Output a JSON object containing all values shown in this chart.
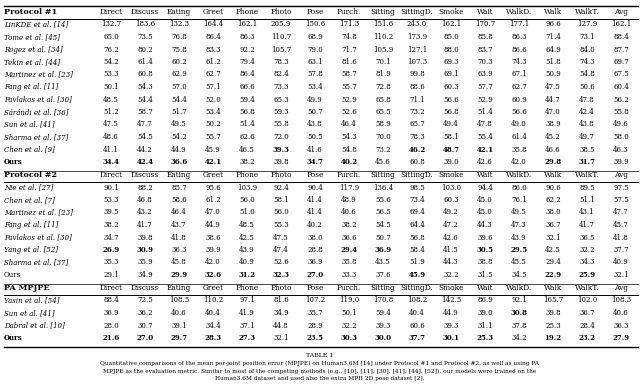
{
  "columns": [
    "",
    "Direct",
    "Discuss",
    "Eating",
    "Greet",
    "Phone",
    "Photo",
    "Pose",
    "Purch.",
    "Sitting",
    "SittingD.",
    "Smoke",
    "Wait",
    "WalkD.",
    "Walk",
    "WalkT.",
    "Avg"
  ],
  "protocol1_header": "Protocol #1",
  "protocol2_header": "Protocol #2",
  "pa_header": "PA MPJPE",
  "protocol1_rows": [
    {
      "name": "LinKDE et al. [14]",
      "vals": [
        132.7,
        183.6,
        132.3,
        164.4,
        162.1,
        205.9,
        150.6,
        171.3,
        151.6,
        243.0,
        162.1,
        170.7,
        177.1,
        96.6,
        127.9,
        162.1
      ],
      "bold_name": false,
      "bold_vals": []
    },
    {
      "name": "Tome et al. [45]",
      "vals": [
        65.0,
        73.5,
        76.8,
        86.4,
        86.3,
        110.7,
        68.9,
        74.8,
        110.2,
        173.9,
        85.0,
        85.8,
        86.3,
        71.4,
        73.1,
        88.4
      ],
      "bold_name": false,
      "bold_vals": []
    },
    {
      "name": "Rogez et al. [34]",
      "vals": [
        76.2,
        80.2,
        75.8,
        83.3,
        92.2,
        105.7,
        79.0,
        71.7,
        105.9,
        127.1,
        88.0,
        83.7,
        86.6,
        64.9,
        84.0,
        87.7
      ],
      "bold_name": false,
      "bold_vals": []
    },
    {
      "name": "Tekin et al. [44]",
      "vals": [
        54.2,
        61.4,
        60.2,
        61.2,
        79.4,
        78.3,
        63.1,
        81.6,
        70.1,
        107.3,
        69.3,
        70.3,
        74.3,
        51.8,
        74.3,
        69.7
      ],
      "bold_name": false,
      "bold_vals": []
    },
    {
      "name": "Martinez et al. [23]",
      "vals": [
        53.3,
        60.8,
        62.9,
        62.7,
        86.4,
        82.4,
        57.8,
        58.7,
        81.9,
        99.8,
        69.1,
        63.9,
        67.1,
        50.9,
        54.8,
        67.5
      ],
      "bold_name": false,
      "bold_vals": []
    },
    {
      "name": "Fang et al. [11]",
      "vals": [
        50.1,
        54.3,
        57.0,
        57.1,
        66.6,
        73.3,
        53.4,
        55.7,
        72.8,
        88.6,
        60.3,
        57.7,
        62.7,
        47.5,
        50.6,
        60.4
      ],
      "bold_name": false,
      "bold_vals": []
    },
    {
      "name": "Pavlakos et al. [30]",
      "vals": [
        48.5,
        54.4,
        54.4,
        52.0,
        59.4,
        65.3,
        49.9,
        52.9,
        65.8,
        71.1,
        56.6,
        52.9,
        60.9,
        44.7,
        47.8,
        56.2
      ],
      "bold_name": false,
      "bold_vals": []
    },
    {
      "name": "Sárándi et al. [36]",
      "vals": [
        51.2,
        58.7,
        51.7,
        53.4,
        56.8,
        59.3,
        50.7,
        52.6,
        65.5,
        73.2,
        56.8,
        51.4,
        56.6,
        47.0,
        42.4,
        55.8
      ],
      "bold_name": false,
      "bold_vals": []
    },
    {
      "name": "Sun et al. [41]",
      "vals": [
        47.5,
        47.7,
        49.5,
        50.2,
        51.4,
        55.8,
        43.8,
        46.4,
        58.9,
        65.7,
        49.4,
        47.8,
        49.0,
        38.9,
        43.8,
        49.6
      ],
      "bold_name": false,
      "bold_vals": []
    },
    {
      "name": "Sharma et al. [37]",
      "vals": [
        48.6,
        54.5,
        54.2,
        55.7,
        62.6,
        72.0,
        50.5,
        54.3,
        70.0,
        78.3,
        58.1,
        55.4,
        61.4,
        45.2,
        49.7,
        58.0
      ],
      "bold_name": false,
      "bold_vals": []
    },
    {
      "name": "Chen et al. [9]",
      "vals": [
        41.1,
        44.2,
        44.9,
        45.9,
        46.5,
        39.3,
        41.6,
        54.8,
        73.2,
        46.2,
        48.7,
        42.1,
        35.8,
        46.6,
        38.5,
        46.3
      ],
      "bold_name": false,
      "bold_vals": [
        6,
        10,
        11,
        12
      ]
    },
    {
      "name": "Ours",
      "vals": [
        34.4,
        42.4,
        36.6,
        42.1,
        38.2,
        39.8,
        34.7,
        40.2,
        45.6,
        60.8,
        39.0,
        42.6,
        42.0,
        29.8,
        31.7,
        39.9
      ],
      "bold_name": true,
      "bold_vals": [
        1,
        2,
        3,
        4,
        7,
        8,
        14,
        15
      ]
    }
  ],
  "protocol2_rows": [
    {
      "name": "Nie et al. [27]",
      "vals": [
        90.1,
        88.2,
        85.7,
        95.6,
        103.9,
        92.4,
        90.4,
        117.9,
        136.4,
        98.5,
        103.0,
        94.4,
        86.0,
        90.6,
        89.5,
        97.5
      ],
      "bold_name": false,
      "bold_vals": []
    },
    {
      "name": "Chen et al. [7]",
      "vals": [
        53.3,
        46.8,
        58.6,
        61.2,
        56.0,
        58.1,
        41.4,
        48.9,
        55.6,
        73.4,
        60.3,
        45.0,
        76.1,
        62.2,
        51.1,
        57.5
      ],
      "bold_name": false,
      "bold_vals": []
    },
    {
      "name": "Martinez et al. [23]",
      "vals": [
        39.5,
        43.2,
        46.4,
        47.0,
        51.0,
        56.0,
        41.4,
        40.6,
        56.5,
        69.4,
        49.2,
        45.0,
        49.5,
        38.0,
        43.1,
        47.7
      ],
      "bold_name": false,
      "bold_vals": []
    },
    {
      "name": "Fang et al. [11]",
      "vals": [
        38.2,
        41.7,
        43.7,
        44.9,
        48.5,
        55.3,
        40.2,
        38.2,
        54.5,
        64.4,
        47.2,
        44.3,
        47.3,
        36.7,
        41.7,
        45.7
      ],
      "bold_name": false,
      "bold_vals": []
    },
    {
      "name": "Pavlakos et al. [30]",
      "vals": [
        34.7,
        39.8,
        41.8,
        38.6,
        42.5,
        47.5,
        38.0,
        36.6,
        50.7,
        56.8,
        42.6,
        39.6,
        43.9,
        32.1,
        36.5,
        41.8
      ],
      "bold_name": false,
      "bold_vals": []
    },
    {
      "name": "Yang et al. [52]",
      "vals": [
        26.9,
        30.9,
        36.3,
        39.9,
        43.9,
        47.4,
        28.8,
        29.4,
        36.9,
        58.4,
        41.5,
        30.5,
        29.5,
        42.5,
        32.2,
        37.7
      ],
      "bold_name": false,
      "bold_vals": [
        1,
        2,
        8,
        9,
        12,
        13
      ]
    },
    {
      "name": "Sharma et al. [37]",
      "vals": [
        35.3,
        35.9,
        45.8,
        42.0,
        40.9,
        52.6,
        36.9,
        35.8,
        43.5,
        51.9,
        44.3,
        38.8,
        45.5,
        29.4,
        34.3,
        40.9
      ],
      "bold_name": false,
      "bold_vals": []
    },
    {
      "name": "Ours",
      "vals": [
        29.1,
        34.9,
        29.9,
        32.6,
        31.2,
        32.3,
        27.0,
        33.3,
        37.6,
        45.9,
        32.2,
        31.5,
        34.5,
        22.9,
        25.9,
        32.1
      ],
      "bold_name": false,
      "bold_vals": [
        3,
        4,
        5,
        6,
        7,
        10,
        14,
        15
      ]
    }
  ],
  "pa_rows": [
    {
      "name": "Yasin et al. [54]",
      "vals": [
        88.4,
        72.5,
        108.5,
        110.2,
        97.1,
        81.6,
        107.2,
        119.0,
        170.8,
        108.2,
        142.5,
        86.9,
        92.1,
        165.7,
        102.0,
        108.3
      ],
      "bold_name": false,
      "bold_vals": []
    },
    {
      "name": "Sun et al. [41]",
      "vals": [
        36.9,
        36.2,
        40.6,
        40.4,
        41.9,
        34.9,
        35.7,
        50.1,
        59.4,
        40.4,
        44.9,
        39.0,
        30.8,
        39.8,
        36.7,
        40.6
      ],
      "bold_name": false,
      "bold_vals": [
        13
      ]
    },
    {
      "name": "Dabral et al. [10]",
      "vals": [
        28.0,
        30.7,
        39.1,
        34.4,
        37.1,
        44.8,
        28.9,
        32.2,
        39.3,
        60.6,
        39.3,
        31.1,
        37.8,
        25.3,
        28.4,
        36.3
      ],
      "bold_name": false,
      "bold_vals": []
    },
    {
      "name": "Ours",
      "vals": [
        21.6,
        27.0,
        29.7,
        28.3,
        27.3,
        32.1,
        23.5,
        30.3,
        30.0,
        37.7,
        30.1,
        25.3,
        34.2,
        19.2,
        23.2,
        27.9
      ],
      "bold_name": true,
      "bold_vals": [
        1,
        2,
        3,
        4,
        5,
        7,
        8,
        9,
        10,
        11,
        12,
        14,
        15,
        16
      ]
    }
  ],
  "caption_title": "TABLE 1",
  "caption_text": "Quantitative comparisons of the mean per-joint position error (MPJPE) on Human3.6M [14] under Protocol #1 and Protocol #2, as well as using PA\nMPJPE as the evaluation metric. Similar to most of the competing methods (e.g., [10], [11], [30], [41], [44], [52]), our models were trained on the\nHuman3.6M dataset and used also the extra MPII 2D pose dataset [2].",
  "figsize": [
    6.4,
    3.9
  ],
  "dpi": 100
}
